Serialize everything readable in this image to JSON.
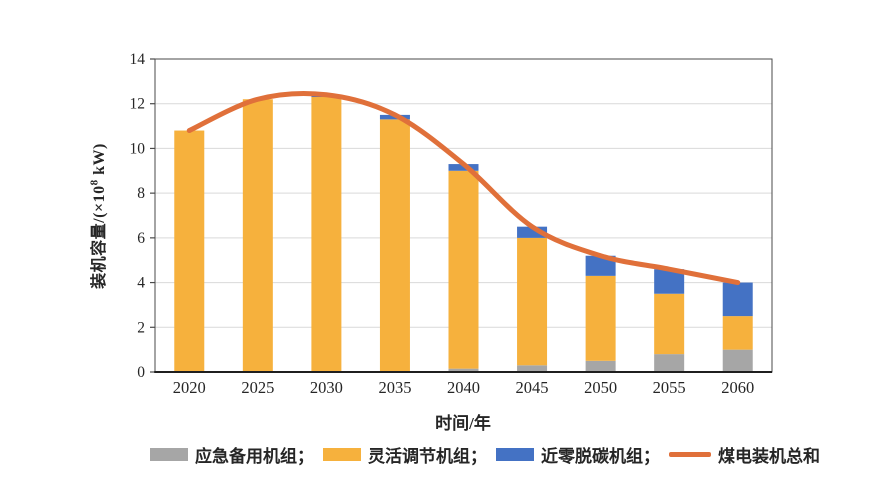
{
  "chart_data": {
    "type": "bar",
    "subtype": "stacked-bars-with-line",
    "title": "",
    "xlabel": "时间/年",
    "ylabel": "装机容量/(×10⁸ kW)",
    "ylabel_parts": {
      "prefix": "装机容量/(×10",
      "sup": "8",
      "suffix": " kW)"
    },
    "categories": [
      "2020",
      "2025",
      "2030",
      "2035",
      "2040",
      "2045",
      "2050",
      "2055",
      "2060"
    ],
    "bar_series": [
      {
        "name": "应急备用机组",
        "color": "#A6A6A6",
        "values": [
          0,
          0,
          0,
          0,
          0.15,
          0.3,
          0.5,
          0.8,
          1.0
        ]
      },
      {
        "name": "灵活调节机组",
        "color": "#F6B13D",
        "values": [
          10.8,
          12.2,
          12.3,
          11.3,
          8.85,
          5.7,
          3.8,
          2.7,
          1.5
        ]
      },
      {
        "name": "近零脱碳机组",
        "color": "#4472C4",
        "values": [
          0,
          0,
          0.1,
          0.2,
          0.3,
          0.5,
          0.9,
          1.1,
          1.5
        ]
      }
    ],
    "line_series": {
      "name": "煤电装机总和",
      "color": "#E0703A",
      "values": [
        10.8,
        12.2,
        12.4,
        11.5,
        9.3,
        6.5,
        5.2,
        4.6,
        4.0
      ]
    },
    "ylim": [
      0,
      14
    ],
    "yticks": [
      0,
      2,
      4,
      6,
      8,
      10,
      12,
      14
    ],
    "grid": "horizontal",
    "legend_position": "bottom",
    "legend": [
      {
        "label": "应急备用机组；",
        "swatch": "rect",
        "color": "#A6A6A6"
      },
      {
        "label": "灵活调节机组；",
        "swatch": "rect",
        "color": "#F6B13D"
      },
      {
        "label": "近零脱碳机组；",
        "swatch": "rect",
        "color": "#4472C4"
      },
      {
        "label": "煤电装机总和",
        "swatch": "line",
        "color": "#E0703A"
      }
    ],
    "colors": {
      "grid": "#D9D9D9",
      "axis_box": "#4a4a4a",
      "axis_bottom": "#1f1f1f",
      "tick_text": "#262626"
    }
  }
}
